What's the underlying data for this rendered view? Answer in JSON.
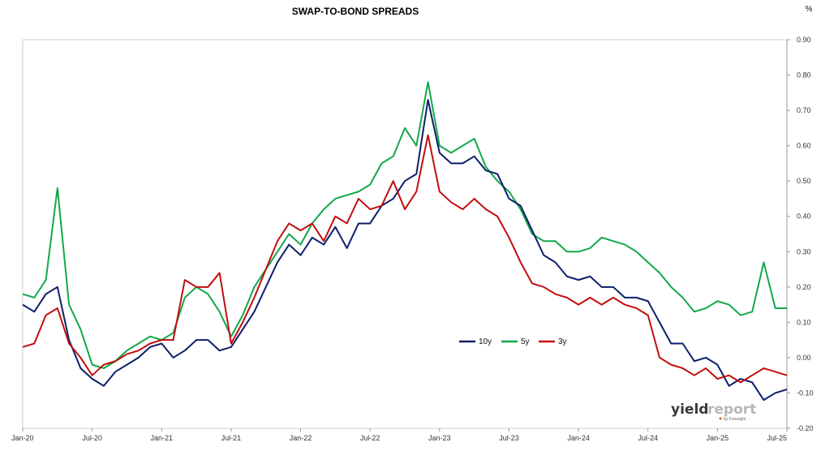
{
  "chart_data": {
    "type": "line",
    "title": "SWAP-TO-BOND SPREADS",
    "ylabel": "%",
    "ylim": [
      -0.2,
      0.9
    ],
    "y_ticks": [
      "0.90",
      "0.80",
      "0.70",
      "0.60",
      "0.50",
      "0.40",
      "0.30",
      "0.20",
      "0.10",
      "0.00",
      "-0.10",
      "-0.20"
    ],
    "x_ticks": [
      "Jan-20",
      "Jul-20",
      "Jan-21",
      "Jul-21",
      "Jan-22",
      "Jul-22",
      "Jan-23",
      "Jul-23",
      "Jan-24",
      "Jul-24",
      "Jan-25",
      "Jul-25"
    ],
    "xlim": [
      "2020-01",
      "2025-07"
    ],
    "grid": {
      "horizontal": false,
      "vertical": false
    },
    "axis_right": true,
    "legend_position": "inside-center-right",
    "x": [
      "2020-01",
      "2020-02",
      "2020-03",
      "2020-04",
      "2020-05",
      "2020-06",
      "2020-07",
      "2020-08",
      "2020-09",
      "2020-10",
      "2020-11",
      "2020-12",
      "2021-01",
      "2021-02",
      "2021-03",
      "2021-04",
      "2021-05",
      "2021-06",
      "2021-07",
      "2021-08",
      "2021-09",
      "2021-10",
      "2021-11",
      "2021-12",
      "2022-01",
      "2022-02",
      "2022-03",
      "2022-04",
      "2022-05",
      "2022-06",
      "2022-07",
      "2022-08",
      "2022-09",
      "2022-10",
      "2022-11",
      "2022-12",
      "2023-01",
      "2023-02",
      "2023-03",
      "2023-04",
      "2023-05",
      "2023-06",
      "2023-07",
      "2023-08",
      "2023-09",
      "2023-10",
      "2023-11",
      "2023-12",
      "2024-01",
      "2024-02",
      "2024-03",
      "2024-04",
      "2024-05",
      "2024-06",
      "2024-07",
      "2024-08",
      "2024-09",
      "2024-10",
      "2024-11",
      "2024-12",
      "2025-01",
      "2025-02",
      "2025-03",
      "2025-04",
      "2025-05",
      "2025-06",
      "2025-07"
    ],
    "series": [
      {
        "name": "10y",
        "color": "#0d1f6b",
        "values": [
          0.15,
          0.13,
          0.18,
          0.2,
          0.05,
          -0.03,
          -0.06,
          -0.08,
          -0.04,
          -0.02,
          0.0,
          0.03,
          0.04,
          0.0,
          0.02,
          0.05,
          0.05,
          0.02,
          0.03,
          0.08,
          0.13,
          0.2,
          0.27,
          0.32,
          0.29,
          0.34,
          0.32,
          0.37,
          0.31,
          0.38,
          0.38,
          0.43,
          0.45,
          0.5,
          0.52,
          0.73,
          0.58,
          0.55,
          0.55,
          0.57,
          0.53,
          0.52,
          0.45,
          0.43,
          0.36,
          0.29,
          0.27,
          0.23,
          0.22,
          0.23,
          0.2,
          0.2,
          0.17,
          0.17,
          0.16,
          0.1,
          0.04,
          0.04,
          -0.01,
          0.0,
          -0.02,
          -0.08,
          -0.06,
          -0.07,
          -0.12,
          -0.1,
          -0.09
        ]
      },
      {
        "name": "5y",
        "color": "#12a84a",
        "values": [
          0.18,
          0.17,
          0.22,
          0.48,
          0.15,
          0.08,
          -0.02,
          -0.03,
          -0.01,
          0.02,
          0.04,
          0.06,
          0.05,
          0.07,
          0.17,
          0.2,
          0.18,
          0.13,
          0.06,
          0.12,
          0.2,
          0.25,
          0.3,
          0.35,
          0.32,
          0.38,
          0.42,
          0.45,
          0.46,
          0.47,
          0.49,
          0.55,
          0.57,
          0.65,
          0.6,
          0.78,
          0.6,
          0.58,
          0.6,
          0.62,
          0.54,
          0.5,
          0.47,
          0.42,
          0.35,
          0.33,
          0.33,
          0.3,
          0.3,
          0.31,
          0.34,
          0.33,
          0.32,
          0.3,
          0.27,
          0.24,
          0.2,
          0.17,
          0.13,
          0.14,
          0.16,
          0.15,
          0.12,
          0.13,
          0.27,
          0.14,
          0.14
        ]
      },
      {
        "name": "3y",
        "color": "#c20e0e",
        "values": [
          0.03,
          0.04,
          0.12,
          0.14,
          0.04,
          0.0,
          -0.05,
          -0.02,
          -0.01,
          0.01,
          0.02,
          0.04,
          0.05,
          0.05,
          0.22,
          0.2,
          0.2,
          0.24,
          0.04,
          0.1,
          0.17,
          0.25,
          0.33,
          0.38,
          0.36,
          0.38,
          0.33,
          0.4,
          0.38,
          0.45,
          0.42,
          0.43,
          0.5,
          0.42,
          0.47,
          0.63,
          0.47,
          0.44,
          0.42,
          0.45,
          0.42,
          0.4,
          0.34,
          0.27,
          0.21,
          0.2,
          0.18,
          0.17,
          0.15,
          0.17,
          0.15,
          0.17,
          0.15,
          0.14,
          0.12,
          0.0,
          -0.02,
          -0.03,
          -0.05,
          -0.03,
          -0.06,
          -0.05,
          -0.07,
          -0.05,
          -0.03,
          -0.04,
          -0.05
        ]
      }
    ]
  },
  "watermark": {
    "brand_dark": "yield",
    "brand_light": "report",
    "byline": "by Foresight"
  }
}
